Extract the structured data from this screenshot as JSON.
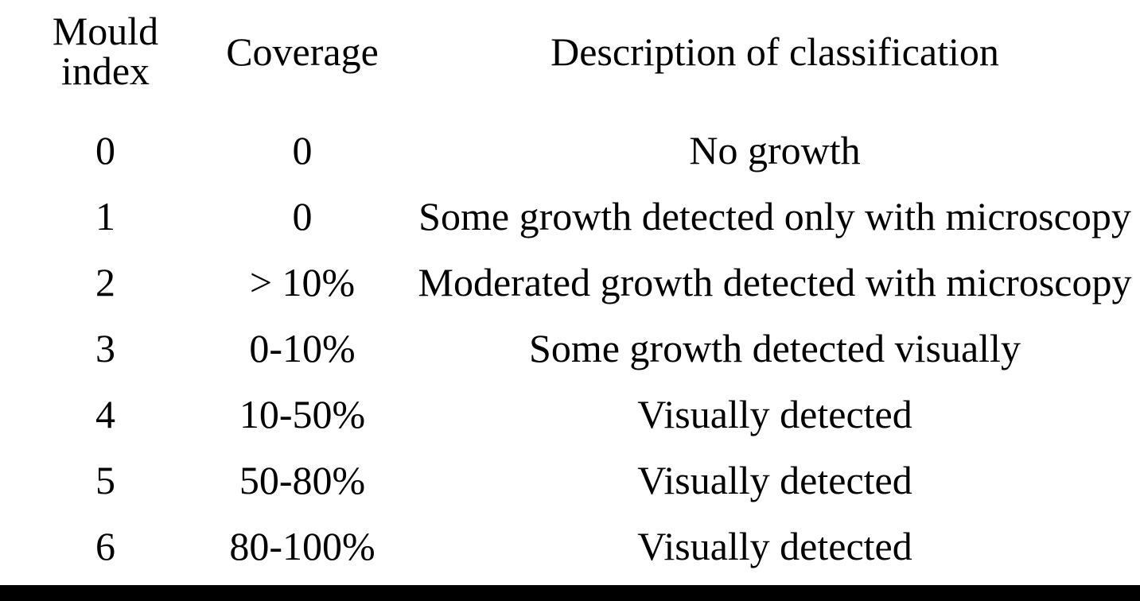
{
  "table": {
    "headers": {
      "index_line1": "Mould",
      "index_line2": "index",
      "coverage": "Coverage",
      "description": "Description of classification"
    },
    "rows": [
      {
        "index": "0",
        "coverage": "0",
        "description": "No growth"
      },
      {
        "index": "1",
        "coverage": "0",
        "description": "Some growth detected only with microscopy"
      },
      {
        "index": "2",
        "coverage": "> 10%",
        "description": "Moderated growth detected with microscopy"
      },
      {
        "index": "3",
        "coverage": "0-10%",
        "description": "Some growth detected visually"
      },
      {
        "index": "4",
        "coverage": "10-50%",
        "description": "Visually detected"
      },
      {
        "index": "5",
        "coverage": "50-80%",
        "description": "Visually detected"
      },
      {
        "index": "6",
        "coverage": "80-100%",
        "description": "Visually detected"
      }
    ]
  }
}
